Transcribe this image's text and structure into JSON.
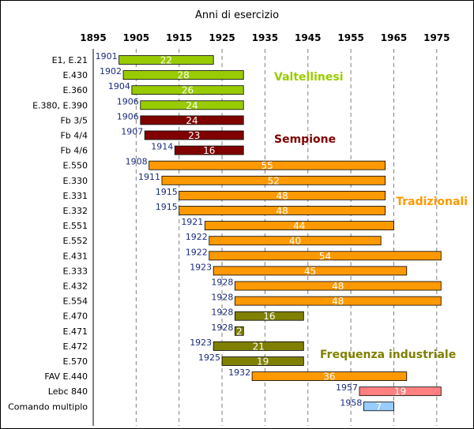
{
  "chart_data": {
    "type": "bar",
    "orientation": "horizontal-range",
    "title": "Anni di esercizio",
    "xlim": [
      1895,
      1980
    ],
    "xticks": [
      1895,
      1905,
      1915,
      1925,
      1935,
      1945,
      1955,
      1965,
      1975
    ],
    "grid": true,
    "bars": [
      {
        "category": "E1, E.21",
        "start": 1901,
        "duration": 22,
        "group": "valtellinesi"
      },
      {
        "category": "E.430",
        "start": 1902,
        "duration": 28,
        "group": "valtellinesi"
      },
      {
        "category": "E.360",
        "start": 1904,
        "duration": 26,
        "group": "valtellinesi"
      },
      {
        "category": "E.380, E.390",
        "start": 1906,
        "duration": 24,
        "group": "valtellinesi"
      },
      {
        "category": "Fb 3/5",
        "start": 1906,
        "duration": 24,
        "group": "sempione"
      },
      {
        "category": "Fb 4/4",
        "start": 1907,
        "duration": 23,
        "group": "sempione"
      },
      {
        "category": "Fb 4/6",
        "start": 1914,
        "duration": 16,
        "group": "sempione"
      },
      {
        "category": "E.550",
        "start": 1908,
        "duration": 55,
        "group": "tradizionali"
      },
      {
        "category": "E.330",
        "start": 1911,
        "duration": 52,
        "group": "tradizionali"
      },
      {
        "category": "E.331",
        "start": 1915,
        "duration": 48,
        "group": "tradizionali"
      },
      {
        "category": "E.332",
        "start": 1915,
        "duration": 48,
        "group": "tradizionali"
      },
      {
        "category": "E.551",
        "start": 1921,
        "duration": 44,
        "group": "tradizionali"
      },
      {
        "category": "E.552",
        "start": 1922,
        "duration": 40,
        "group": "tradizionali"
      },
      {
        "category": "E.431",
        "start": 1922,
        "duration": 54,
        "group": "tradizionali"
      },
      {
        "category": "E.333",
        "start": 1923,
        "duration": 45,
        "group": "tradizionali"
      },
      {
        "category": "E.432",
        "start": 1928,
        "duration": 48,
        "group": "tradizionali"
      },
      {
        "category": "E.554",
        "start": 1928,
        "duration": 48,
        "group": "tradizionali"
      },
      {
        "category": "E.470",
        "start": 1928,
        "duration": 16,
        "group": "industriale"
      },
      {
        "category": "E.471",
        "start": 1928,
        "duration": 2,
        "group": "industriale"
      },
      {
        "category": "E.472",
        "start": 1923,
        "duration": 21,
        "group": "industriale"
      },
      {
        "category": "E.570",
        "start": 1925,
        "duration": 19,
        "group": "industriale"
      },
      {
        "category": "FAV E.440",
        "start": 1932,
        "duration": 36,
        "group": "tradizionali"
      },
      {
        "category": "Lebc 840",
        "start": 1957,
        "duration": 19,
        "group": "lebc"
      },
      {
        "category": "Comando multiplo",
        "start": 1958,
        "duration": 7,
        "group": "comando"
      }
    ],
    "groups": {
      "valtellinesi": {
        "label": "Valtellinesi",
        "color": "#99cc00"
      },
      "sempione": {
        "label": "Sempione",
        "color": "#800000"
      },
      "tradizionali": {
        "label": "Tradizionali",
        "color": "#ff9900"
      },
      "industriale": {
        "label": "Frequenza industriale",
        "color": "#808000"
      },
      "lebc": {
        "label": "",
        "color": "#ff8080"
      },
      "comando": {
        "label": "",
        "color": "#99ccff"
      }
    },
    "group_annotations": [
      "valtellinesi",
      "sempione",
      "tradizionali",
      "industriale"
    ],
    "start_label_color": "#1a2b7a",
    "duration_label_color": "#ffffff"
  }
}
